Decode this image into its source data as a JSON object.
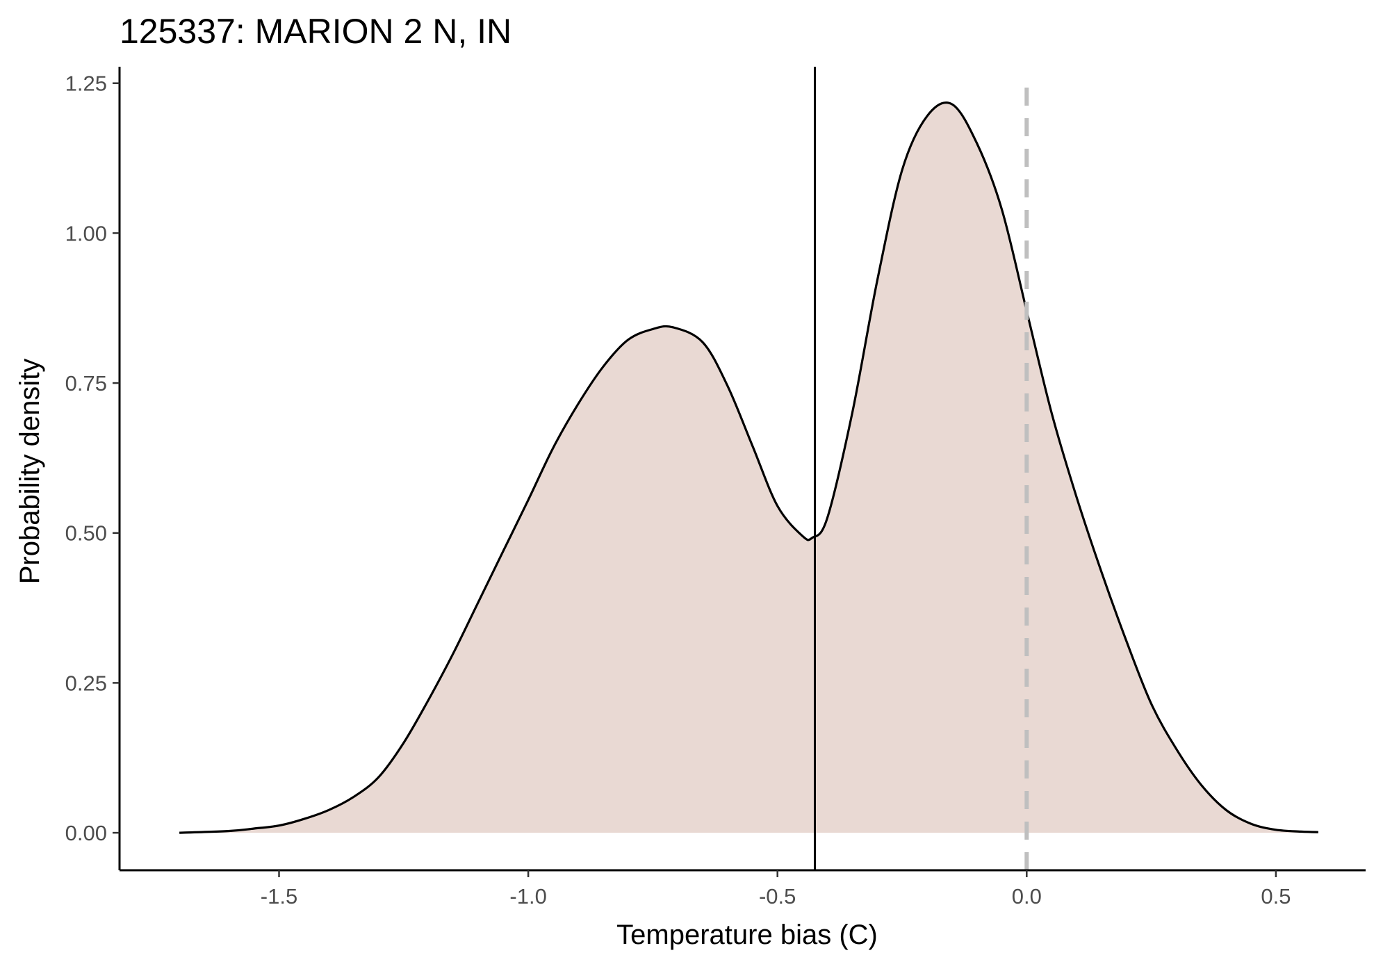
{
  "chart_data": {
    "type": "area",
    "title": "125337: MARION 2 N, IN",
    "xlabel": "Temperature bias (C)",
    "ylabel": "Probability density",
    "xlim": [
      -1.82,
      0.68
    ],
    "ylim": [
      -0.0625,
      1.2775
    ],
    "x_ticks": [
      -1.5,
      -1.0,
      -0.5,
      0.0,
      0.5
    ],
    "x_tick_labels": [
      "-1.5",
      "-1.0",
      "-0.5",
      "0.0",
      "0.5"
    ],
    "y_ticks": [
      0.0,
      0.25,
      0.5,
      0.75,
      1.0,
      1.25
    ],
    "y_tick_labels": [
      "0.00",
      "0.25",
      "0.50",
      "0.75",
      "1.00",
      "1.25"
    ],
    "grid": false,
    "legend": "none",
    "fill_color": "#e9d9d3",
    "line_color": "#000000",
    "reference_lines": [
      {
        "x": -0.425,
        "style": "solid",
        "color": "#000000"
      },
      {
        "x": 0.0,
        "style": "dashed",
        "color": "#bfbfbf"
      }
    ],
    "series": [
      {
        "x": [
          -1.7,
          -1.6,
          -1.55,
          -1.5,
          -1.45,
          -1.4,
          -1.35,
          -1.3,
          -1.25,
          -1.2,
          -1.15,
          -1.1,
          -1.05,
          -1.0,
          -0.95,
          -0.9,
          -0.85,
          -0.8,
          -0.75,
          -0.71,
          -0.65,
          -0.6,
          -0.55,
          -0.5,
          -0.45,
          -0.43,
          -0.4,
          -0.35,
          -0.3,
          -0.25,
          -0.2,
          -0.15,
          -0.1,
          -0.05,
          0.0,
          0.05,
          0.1,
          0.15,
          0.2,
          0.25,
          0.3,
          0.35,
          0.4,
          0.45,
          0.5,
          0.55,
          0.585
        ],
        "y": [
          0.0,
          0.003,
          0.007,
          0.012,
          0.023,
          0.038,
          0.06,
          0.093,
          0.15,
          0.222,
          0.3,
          0.385,
          0.47,
          0.555,
          0.642,
          0.715,
          0.777,
          0.822,
          0.84,
          0.843,
          0.818,
          0.745,
          0.645,
          0.545,
          0.495,
          0.492,
          0.525,
          0.7,
          0.92,
          1.105,
          1.195,
          1.215,
          1.15,
          1.04,
          0.87,
          0.7,
          0.56,
          0.435,
          0.32,
          0.215,
          0.14,
          0.08,
          0.038,
          0.015,
          0.005,
          0.002,
          0.001
        ]
      }
    ]
  }
}
